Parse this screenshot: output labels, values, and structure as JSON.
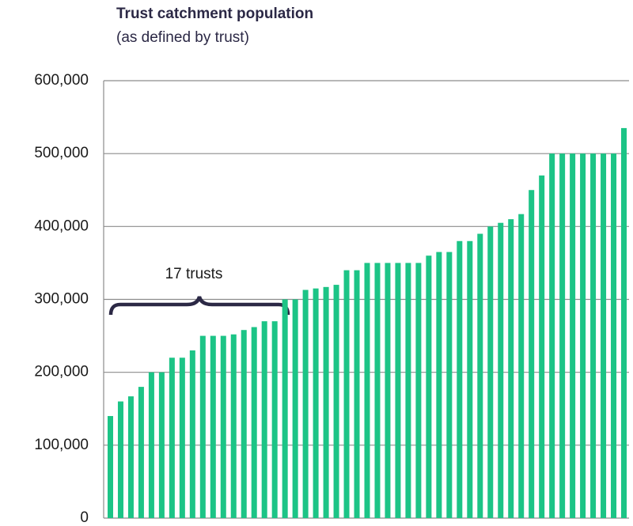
{
  "chart_data": {
    "type": "bar",
    "title": "Trust catchment population",
    "subtitle": "(as defined by trust)",
    "annotation": "17 trusts",
    "categories": [
      null,
      null,
      null,
      null,
      null,
      null,
      null,
      null,
      null,
      null,
      null,
      null,
      null,
      null,
      null,
      null,
      null,
      null,
      null,
      null,
      null,
      null,
      null,
      null,
      null,
      null,
      null,
      null,
      null,
      null,
      null,
      null,
      null,
      null,
      null,
      null,
      null,
      null,
      null,
      null,
      null,
      null,
      null,
      null,
      null,
      null,
      null,
      null,
      null,
      null,
      null
    ],
    "values": [
      140000,
      160000,
      167000,
      180000,
      200000,
      200000,
      220000,
      220000,
      230000,
      250000,
      250000,
      250000,
      252000,
      258000,
      262000,
      270000,
      270000,
      300000,
      300000,
      313000,
      315000,
      317000,
      320000,
      340000,
      340000,
      350000,
      350000,
      350000,
      350000,
      350000,
      350000,
      360000,
      365000,
      365000,
      380000,
      380000,
      390000,
      400000,
      405000,
      410000,
      417000,
      450000,
      470000,
      500000,
      500000,
      500000,
      500000,
      500000,
      500000,
      500000,
      535000
    ],
    "color": "#1cc486",
    "ylim": [
      0,
      600000
    ],
    "yticks": [
      {
        "value": 0,
        "label": "0"
      },
      {
        "value": 100000,
        "label": "100,000"
      },
      {
        "value": 200000,
        "label": "200,000"
      },
      {
        "value": 300000,
        "label": "300,000"
      },
      {
        "value": 400000,
        "label": "400,000"
      },
      {
        "value": 500000,
        "label": "500,000"
      },
      {
        "value": 600000,
        "label": "600,000"
      }
    ],
    "grid": true
  }
}
